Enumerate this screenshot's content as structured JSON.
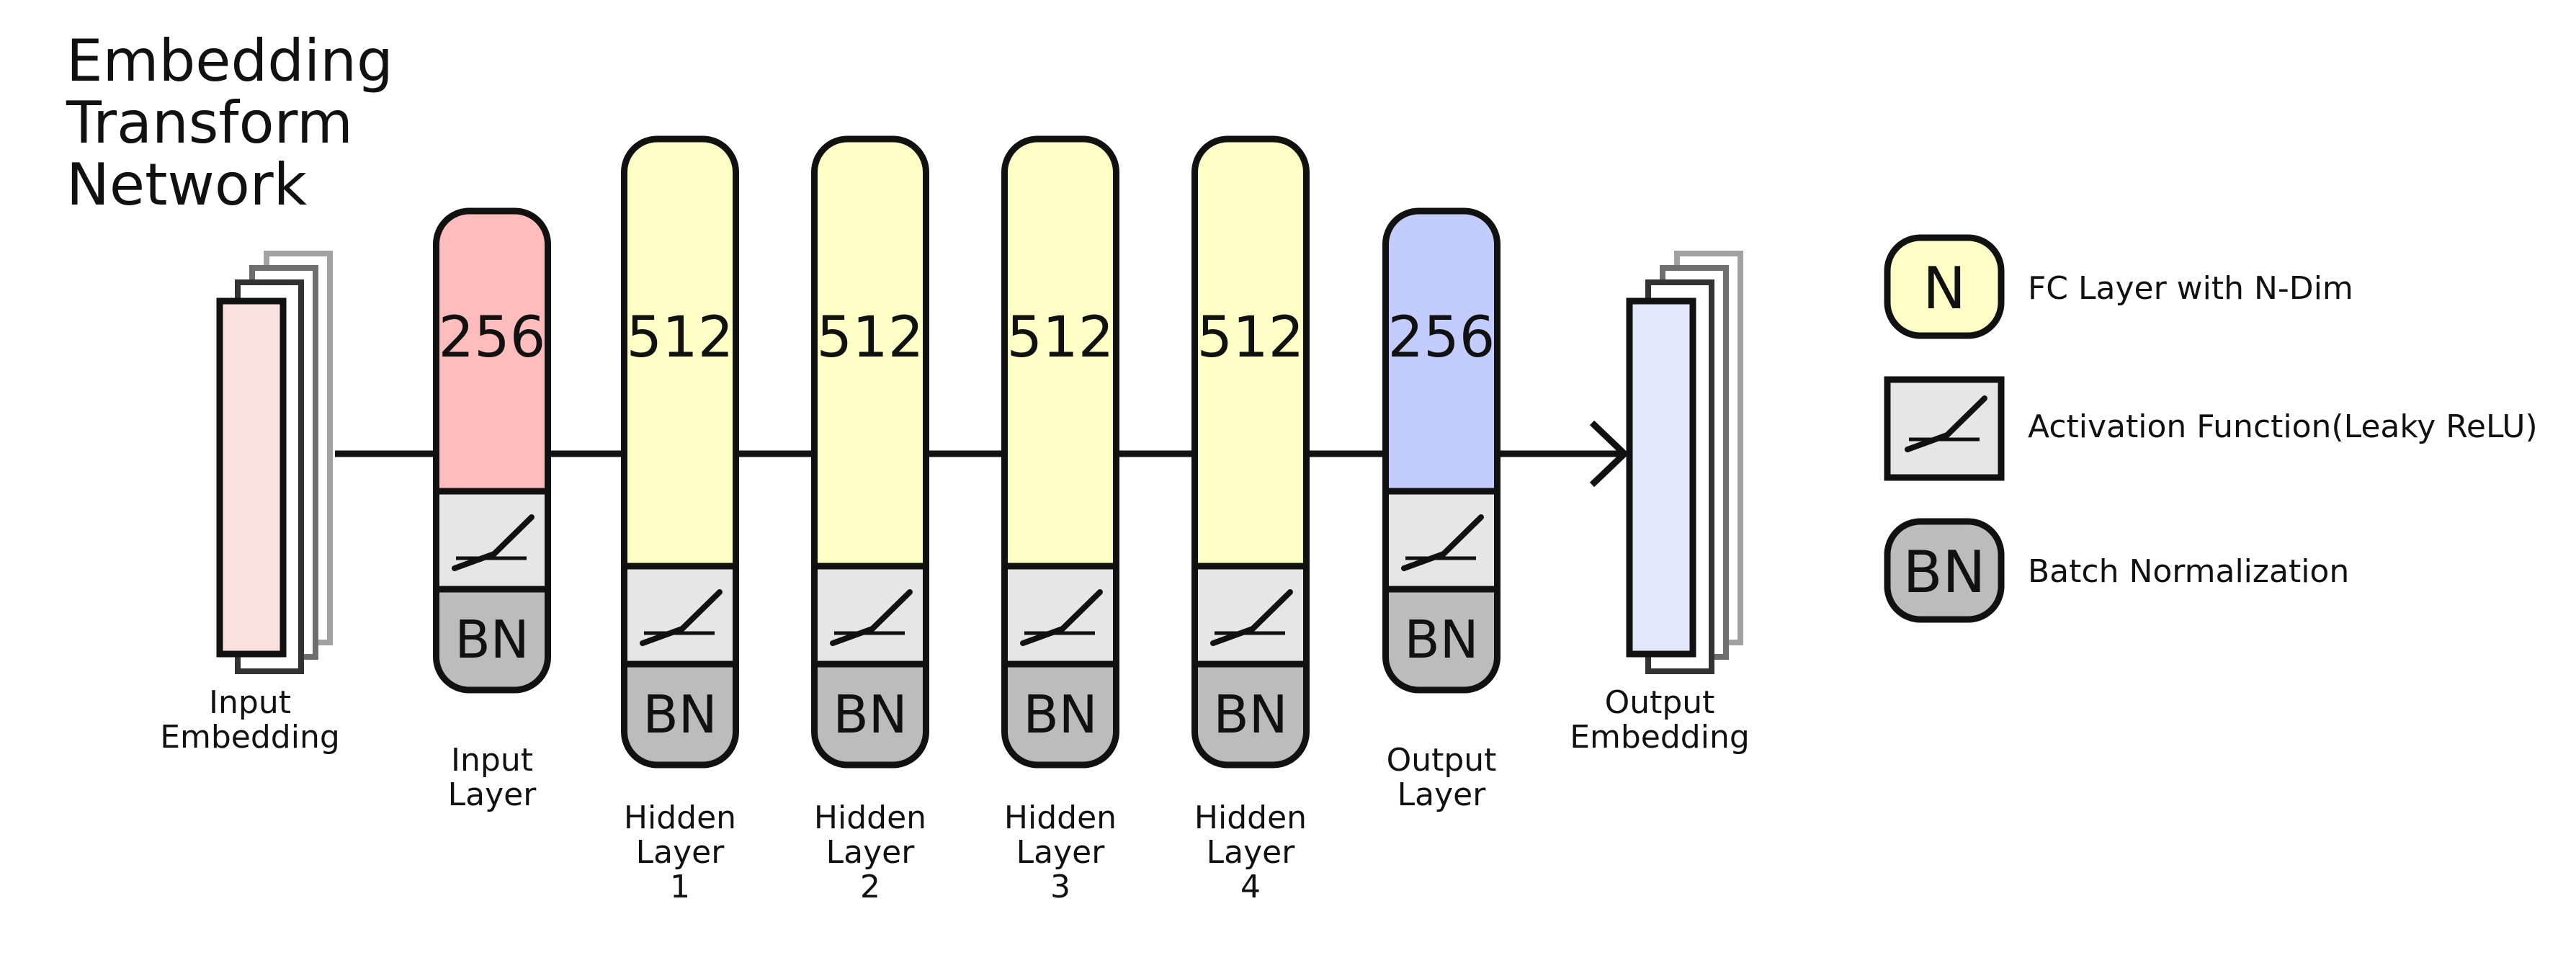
{
  "title": [
    "Embedding",
    "Transform",
    "Network"
  ],
  "colors": {
    "input": "#ffbcbc",
    "input_embedding": "#fde0e0",
    "hidden": "#feffc4",
    "output": "#c2ccfd",
    "output_embedding": "#e2e7fb",
    "activation": "#e6e6e6",
    "batch_norm": "#bcbcbc"
  },
  "input_embedding": {
    "label": [
      "Input",
      "Embedding"
    ]
  },
  "output_embedding": {
    "label": [
      "Output",
      "Embedding"
    ]
  },
  "layers": [
    {
      "name": "input-layer",
      "dim": "256",
      "kind": "input",
      "label": [
        "Input",
        "Layer"
      ],
      "bn": "BN"
    },
    {
      "name": "hidden-layer-1",
      "dim": "512",
      "kind": "hidden",
      "label": [
        "Hidden",
        "Layer",
        "1"
      ],
      "bn": "BN"
    },
    {
      "name": "hidden-layer-2",
      "dim": "512",
      "kind": "hidden",
      "label": [
        "Hidden",
        "Layer",
        "2"
      ],
      "bn": "BN"
    },
    {
      "name": "hidden-layer-3",
      "dim": "512",
      "kind": "hidden",
      "label": [
        "Hidden",
        "Layer",
        "3"
      ],
      "bn": "BN"
    },
    {
      "name": "hidden-layer-4",
      "dim": "512",
      "kind": "hidden",
      "label": [
        "Hidden",
        "Layer",
        "4"
      ],
      "bn": "BN"
    },
    {
      "name": "output-layer",
      "dim": "256",
      "kind": "output",
      "label": [
        "Output",
        "Layer"
      ],
      "bn": "BN"
    }
  ],
  "legend": [
    {
      "symbol": "N",
      "text": "FC Layer with N-Dim",
      "kind": "fc"
    },
    {
      "symbol": "",
      "text": "Activation Function(Leaky ReLU)",
      "kind": "activation"
    },
    {
      "symbol": "BN",
      "text": "Batch Normalization",
      "kind": "bn"
    }
  ]
}
